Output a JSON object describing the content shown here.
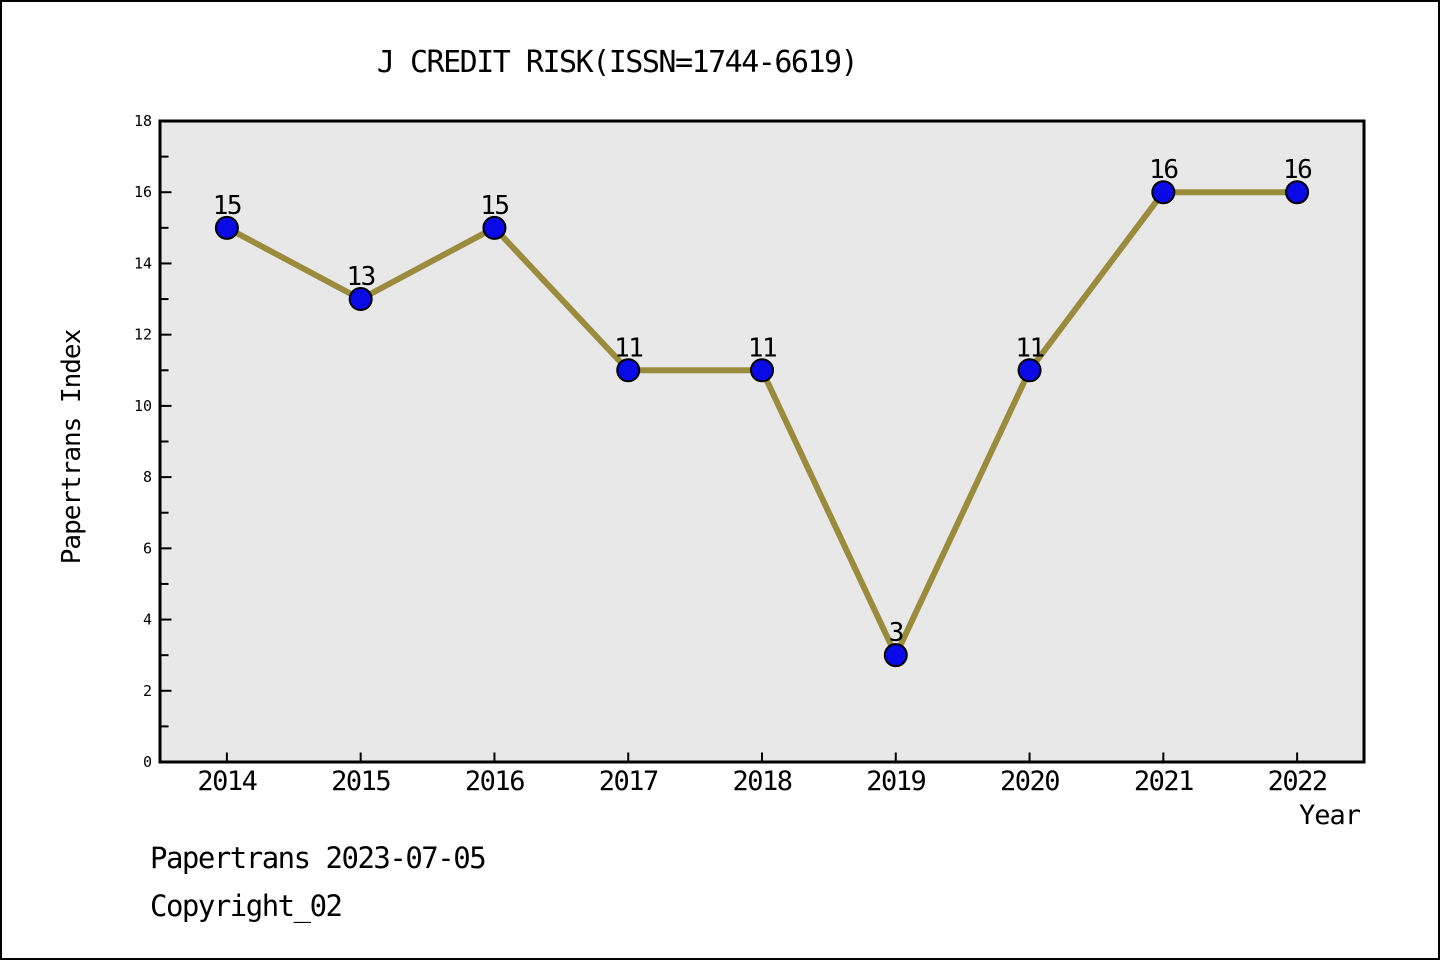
{
  "figure": {
    "kind": "static-chart-image"
  },
  "chart_data": {
    "type": "line",
    "title": "J CREDIT RISK(ISSN=1744-6619)",
    "xlabel": "Year",
    "ylabel": "Papertrans Index",
    "x": [
      2014,
      2015,
      2016,
      2017,
      2018,
      2019,
      2020,
      2021,
      2022
    ],
    "series": [
      {
        "name": "Papertrans Index",
        "values": [
          15,
          13,
          15,
          11,
          11,
          3,
          11,
          16,
          16
        ]
      }
    ],
    "point_labels": [
      "15",
      "13",
      "15",
      "11",
      "11",
      "3",
      "11",
      "16",
      "16"
    ],
    "ylim": [
      0,
      18
    ],
    "ytick_step": 2,
    "yminor_step": 1,
    "grid": false,
    "legend_position": "none",
    "tick_direction": "in",
    "colors": {
      "line": "#9A8B3D",
      "marker_fill": "#0A0AE6",
      "marker_edge": "#000000",
      "plot_bg": "#E8E8E8",
      "axis": "#000000",
      "text": "#000000",
      "figure_bg": "#FFFFFF",
      "border": "#000000"
    }
  },
  "footer": {
    "line1": "Papertrans 2023-07-05",
    "line2": "Copyright_02"
  }
}
